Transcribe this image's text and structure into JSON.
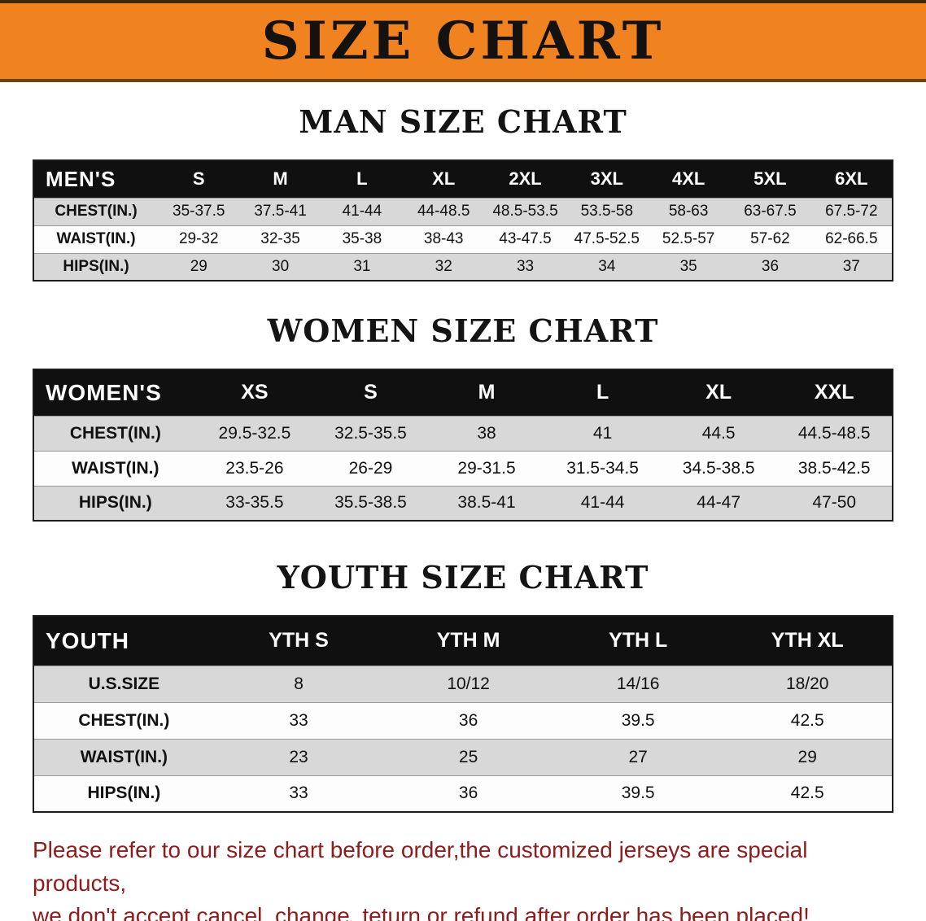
{
  "banner": {
    "title": "SIZE CHART",
    "bg_color": "#F0831F",
    "text_color": "#141210"
  },
  "sections": [
    {
      "id": "men",
      "heading": "MAN SIZE CHART",
      "corner_label": "MEN'S",
      "columns": [
        "S",
        "M",
        "L",
        "XL",
        "2XL",
        "3XL",
        "4XL",
        "5XL",
        "6XL"
      ],
      "rows": [
        {
          "label": "CHEST(IN.)",
          "values": [
            "35-37.5",
            "37.5-41",
            "41-44",
            "44-48.5",
            "48.5-53.5",
            "53.5-58",
            "58-63",
            "63-67.5",
            "67.5-72"
          ]
        },
        {
          "label": "WAIST(IN.)",
          "values": [
            "29-32",
            "32-35",
            "35-38",
            "38-43",
            "43-47.5",
            "47.5-52.5",
            "52.5-57",
            "57-62",
            "62-66.5"
          ]
        },
        {
          "label": "HIPS(IN.)",
          "values": [
            "29",
            "30",
            "31",
            "32",
            "33",
            "34",
            "35",
            "36",
            "37"
          ]
        }
      ]
    },
    {
      "id": "women",
      "heading": "WOMEN SIZE CHART",
      "corner_label": "WOMEN'S",
      "columns": [
        "XS",
        "S",
        "M",
        "L",
        "XL",
        "XXL"
      ],
      "rows": [
        {
          "label": "CHEST(IN.)",
          "values": [
            "29.5-32.5",
            "32.5-35.5",
            "38",
            "41",
            "44.5",
            "44.5-48.5"
          ]
        },
        {
          "label": "WAIST(IN.)",
          "values": [
            "23.5-26",
            "26-29",
            "29-31.5",
            "31.5-34.5",
            "34.5-38.5",
            "38.5-42.5"
          ]
        },
        {
          "label": "HIPS(IN.)",
          "values": [
            "33-35.5",
            "35.5-38.5",
            "38.5-41",
            "41-44",
            "44-47",
            "47-50"
          ]
        }
      ]
    },
    {
      "id": "youth",
      "heading": "YOUTH SIZE CHART",
      "corner_label": "YOUTH",
      "columns": [
        "YTH S",
        "YTH M",
        "YTH L",
        "YTH XL"
      ],
      "rows": [
        {
          "label": "U.S.SIZE",
          "values": [
            "8",
            "10/12",
            "14/16",
            "18/20"
          ]
        },
        {
          "label": "CHEST(IN.)",
          "values": [
            "33",
            "36",
            "39.5",
            "42.5"
          ]
        },
        {
          "label": "WAIST(IN.)",
          "values": [
            "23",
            "25",
            "27",
            "29"
          ]
        },
        {
          "label": "HIPS(IN.)",
          "values": [
            "33",
            "36",
            "39.5",
            "42.5"
          ]
        }
      ]
    }
  ],
  "disclaimer": {
    "color": "#8E1C1C",
    "line1": "Please refer to our size chart before order,the customized jerseys are special products,",
    "line2": "we don't accept cancel, change, teturn or refund after order has been placed!"
  }
}
